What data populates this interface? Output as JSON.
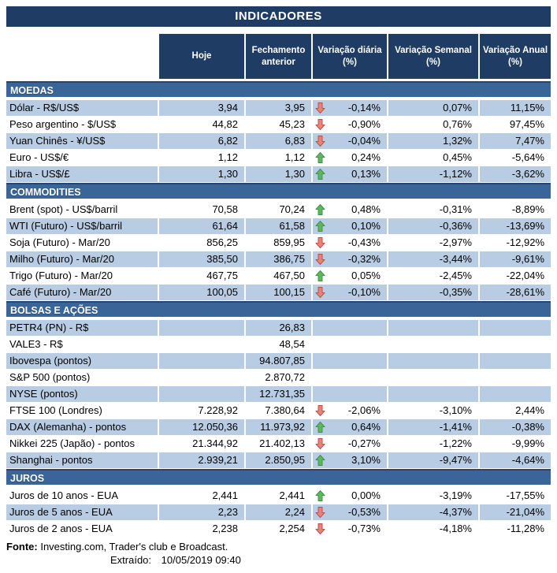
{
  "title": "INDICADORES",
  "columns": [
    "Hoje",
    "Fechamento anterior",
    "Variação diária (%)",
    "Variação Semanal (%)",
    "Variação Anual (%)"
  ],
  "sections": [
    {
      "name": "MOEDAS",
      "rows": [
        {
          "label": "Dólar - R$/US$",
          "hoje": "3,94",
          "fechamento": "3,95",
          "trend": "down",
          "var_diaria": "-0,14%",
          "var_semanal": "0,07%",
          "var_anual": "11,15%"
        },
        {
          "label": "Peso argentino - $/US$",
          "hoje": "44,82",
          "fechamento": "45,23",
          "trend": "down",
          "var_diaria": "-0,90%",
          "var_semanal": "0,76%",
          "var_anual": "97,45%"
        },
        {
          "label": "Yuan Chinês - ¥/US$",
          "hoje": "6,82",
          "fechamento": "6,83",
          "trend": "down",
          "var_diaria": "-0,04%",
          "var_semanal": "1,32%",
          "var_anual": "7,47%"
        },
        {
          "label": "Euro - US$/€",
          "hoje": "1,12",
          "fechamento": "1,12",
          "trend": "up",
          "var_diaria": "0,24%",
          "var_semanal": "0,45%",
          "var_anual": "-5,64%"
        },
        {
          "label": "Libra - US$/£",
          "hoje": "1,30",
          "fechamento": "1,30",
          "trend": "up",
          "var_diaria": "0,13%",
          "var_semanal": "-1,12%",
          "var_anual": "-3,62%"
        }
      ]
    },
    {
      "name": "COMMODITIES",
      "rows": [
        {
          "label": "Brent (spot) - US$/barril",
          "hoje": "70,58",
          "fechamento": "70,24",
          "trend": "up",
          "var_diaria": "0,48%",
          "var_semanal": "-0,31%",
          "var_anual": "-8,89%"
        },
        {
          "label": "WTI (Futuro) - US$/barril",
          "hoje": "61,64",
          "fechamento": "61,58",
          "trend": "up",
          "var_diaria": "0,10%",
          "var_semanal": "-0,36%",
          "var_anual": "-13,69%"
        },
        {
          "label": "Soja (Futuro) - Mar/20",
          "hoje": "856,25",
          "fechamento": "859,95",
          "trend": "down",
          "var_diaria": "-0,43%",
          "var_semanal": "-2,97%",
          "var_anual": "-12,92%"
        },
        {
          "label": "Milho (Futuro) - Mar/20",
          "hoje": "385,50",
          "fechamento": "386,75",
          "trend": "down",
          "var_diaria": "-0,32%",
          "var_semanal": "-3,44%",
          "var_anual": "-9,61%"
        },
        {
          "label": "Trigo (Futuro) - Mar/20",
          "hoje": "467,75",
          "fechamento": "467,50",
          "trend": "up",
          "var_diaria": "0,05%",
          "var_semanal": "-2,45%",
          "var_anual": "-22,04%"
        },
        {
          "label": "Café (Futuro) - Mar/20",
          "hoje": "100,05",
          "fechamento": "100,15",
          "trend": "down",
          "var_diaria": "-0,10%",
          "var_semanal": "-0,35%",
          "var_anual": "-28,61%"
        }
      ]
    },
    {
      "name": "BOLSAS E AÇÕES",
      "rows": [
        {
          "label": "PETR4 (PN) - R$",
          "hoje": "",
          "fechamento": "26,83",
          "trend": null,
          "var_diaria": "",
          "var_semanal": "",
          "var_anual": ""
        },
        {
          "label": "VALE3 - R$",
          "hoje": "",
          "fechamento": "48,54",
          "trend": null,
          "var_diaria": "",
          "var_semanal": "",
          "var_anual": ""
        },
        {
          "label": "Ibovespa (pontos)",
          "hoje": "",
          "fechamento": "94.807,85",
          "trend": null,
          "var_diaria": "",
          "var_semanal": "",
          "var_anual": ""
        },
        {
          "label": "S&P 500 (pontos)",
          "hoje": "",
          "fechamento": "2.870,72",
          "trend": null,
          "var_diaria": "",
          "var_semanal": "",
          "var_anual": ""
        },
        {
          "label": "NYSE (pontos)",
          "hoje": "",
          "fechamento": "12.731,35",
          "trend": null,
          "var_diaria": "",
          "var_semanal": "",
          "var_anual": ""
        },
        {
          "label": "FTSE 100 (Londres)",
          "hoje": "7.228,92",
          "fechamento": "7.380,64",
          "trend": "down",
          "var_diaria": "-2,06%",
          "var_semanal": "-3,10%",
          "var_anual": "2,44%"
        },
        {
          "label": "DAX (Alemanha) - pontos",
          "hoje": "12.050,36",
          "fechamento": "11.973,92",
          "trend": "up",
          "var_diaria": "0,64%",
          "var_semanal": "-1,41%",
          "var_anual": "-0,38%"
        },
        {
          "label": "Nikkei 225 (Japão) - pontos",
          "hoje": "21.344,92",
          "fechamento": "21.402,13",
          "trend": "down",
          "var_diaria": "-0,27%",
          "var_semanal": "-1,22%",
          "var_anual": "-9,99%"
        },
        {
          "label": "Shanghai - pontos",
          "hoje": "2.939,21",
          "fechamento": "2.850,95",
          "trend": "up",
          "var_diaria": "3,10%",
          "var_semanal": "-9,47%",
          "var_anual": "-4,64%"
        }
      ]
    },
    {
      "name": "JUROS",
      "rows": [
        {
          "label": "Juros de 10 anos - EUA",
          "hoje": "2,441",
          "fechamento": "2,441",
          "trend": "up",
          "var_diaria": "0,00%",
          "var_semanal": "-3,19%",
          "var_anual": "-17,55%"
        },
        {
          "label": "Juros de 5 anos - EUA",
          "hoje": "2,23",
          "fechamento": "2,24",
          "trend": "down",
          "var_diaria": "-0,53%",
          "var_semanal": "-4,37%",
          "var_anual": "-21,04%"
        },
        {
          "label": "Juros de 2 anos - EUA",
          "hoje": "2,238",
          "fechamento": "2,254",
          "trend": "down",
          "var_diaria": "-0,73%",
          "var_semanal": "-4,18%",
          "var_anual": "-11,28%"
        }
      ]
    }
  ],
  "footer": {
    "fonte_label": "Fonte:",
    "fonte_text": "Investing.com, Trader's club e Broadcast.",
    "extraido_label": "Extraído:",
    "extraido_value": "10/05/2019 09:40"
  },
  "colors": {
    "header_navy": "#1F3D64",
    "section_blue": "#3A6598",
    "section_border": "#26466F",
    "row_shaded": "#B8CCE4",
    "up_fill": "#5CB85C",
    "up_stroke": "#3F8F47",
    "down_fill": "#E8837B",
    "down_stroke": "#BE4B42"
  }
}
